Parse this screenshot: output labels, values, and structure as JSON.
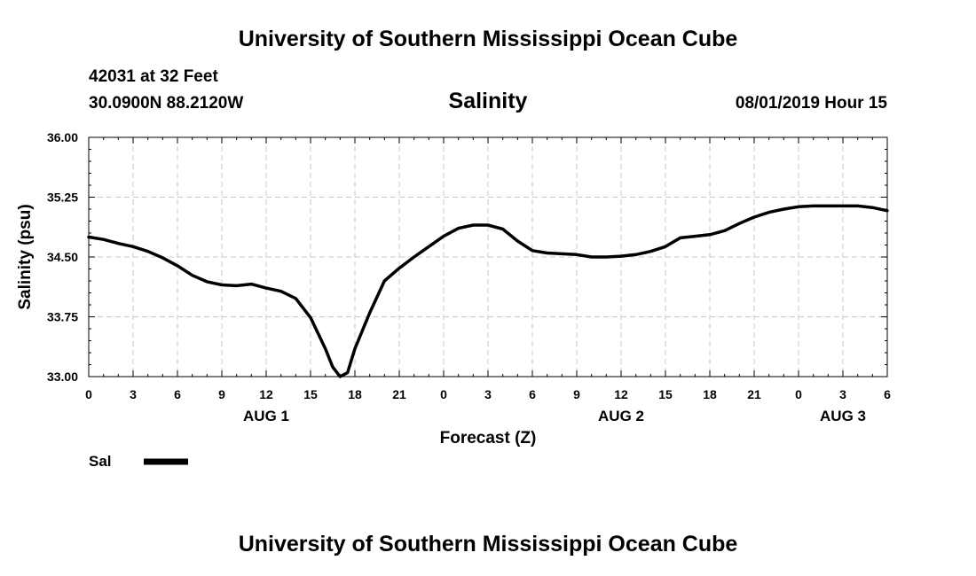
{
  "header": {
    "title": "University of Southern Mississippi Ocean Cube",
    "station": "42031 at 32 Feet",
    "coordinates": "30.0900N 88.2120W",
    "variable": "Salinity",
    "timestamp": "08/01/2019 Hour 15"
  },
  "footer": {
    "title": "University of Southern Mississippi Ocean Cube"
  },
  "chart_data": {
    "type": "line",
    "title": "Salinity",
    "xlabel": "Forecast (Z)",
    "ylabel": "Salinity (psu)",
    "x_unit": "hours from AUG 1 00Z",
    "xlim": [
      0,
      54
    ],
    "ylim": [
      33.0,
      36.0
    ],
    "grid": true,
    "legend": "bottom-left",
    "y_ticks": [
      "33.00",
      "33.75",
      "34.50",
      "35.25",
      "36.00"
    ],
    "y_tick_values": [
      33.0,
      33.75,
      34.5,
      35.25,
      36.0
    ],
    "x_ticks": [
      {
        "x": 0,
        "label": "0"
      },
      {
        "x": 3,
        "label": "3"
      },
      {
        "x": 6,
        "label": "6"
      },
      {
        "x": 9,
        "label": "9"
      },
      {
        "x": 12,
        "label": "12"
      },
      {
        "x": 15,
        "label": "15"
      },
      {
        "x": 18,
        "label": "18"
      },
      {
        "x": 21,
        "label": "21"
      },
      {
        "x": 24,
        "label": "0"
      },
      {
        "x": 27,
        "label": "3"
      },
      {
        "x": 30,
        "label": "6"
      },
      {
        "x": 33,
        "label": "9"
      },
      {
        "x": 36,
        "label": "12"
      },
      {
        "x": 39,
        "label": "15"
      },
      {
        "x": 42,
        "label": "18"
      },
      {
        "x": 45,
        "label": "21"
      },
      {
        "x": 48,
        "label": "0"
      },
      {
        "x": 51,
        "label": "3"
      },
      {
        "x": 54,
        "label": "6"
      }
    ],
    "date_labels": [
      {
        "x": 12,
        "label": "AUG 1"
      },
      {
        "x": 36,
        "label": "AUG 2"
      },
      {
        "x": 51,
        "label": "AUG 3"
      }
    ],
    "series": [
      {
        "name": "Sal",
        "color": "#000000",
        "x": [
          0,
          1,
          2,
          3,
          4,
          5,
          6,
          7,
          8,
          9,
          10,
          11,
          12,
          13,
          14,
          15,
          16,
          16.5,
          17,
          17.5,
          18,
          19,
          20,
          21,
          22,
          23,
          24,
          25,
          26,
          27,
          28,
          29,
          30,
          31,
          32,
          33,
          34,
          35,
          36,
          37,
          38,
          39,
          40,
          41,
          42,
          43,
          44,
          45,
          46,
          47,
          48,
          49,
          50,
          51,
          52,
          53,
          54
        ],
        "values": [
          34.75,
          34.72,
          34.67,
          34.63,
          34.57,
          34.49,
          34.39,
          34.27,
          34.19,
          34.15,
          34.14,
          34.16,
          34.11,
          34.07,
          33.98,
          33.74,
          33.35,
          33.12,
          33.0,
          33.05,
          33.35,
          33.8,
          34.2,
          34.36,
          34.5,
          34.63,
          34.76,
          34.86,
          34.9,
          34.9,
          34.85,
          34.7,
          34.58,
          34.55,
          34.54,
          34.53,
          34.5,
          34.5,
          34.51,
          34.53,
          34.57,
          34.63,
          34.74,
          34.76,
          34.78,
          34.83,
          34.92,
          35.0,
          35.06,
          35.1,
          35.13,
          35.14,
          35.14,
          35.14,
          35.14,
          35.12,
          35.08
        ]
      }
    ]
  }
}
